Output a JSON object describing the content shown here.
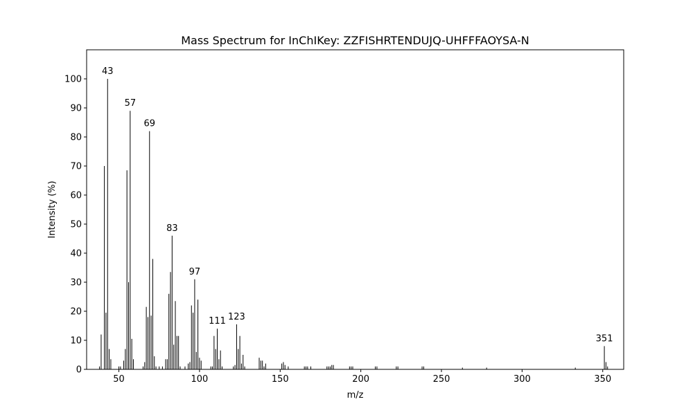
{
  "chart_data": {
    "type": "bar",
    "title": "Mass Spectrum for InChIKey: ZZFISHRTENDUJQ-UHFFFAOYSA-N",
    "xlabel": "m/z",
    "ylabel": "Intensity (%)",
    "xlim": [
      30,
      363
    ],
    "ylim": [
      0,
      110
    ],
    "xticks": [
      50,
      100,
      150,
      200,
      250,
      300,
      350
    ],
    "yticks": [
      0,
      10,
      20,
      30,
      40,
      50,
      60,
      70,
      80,
      90,
      100
    ],
    "grid": false,
    "bar_color": "#000000",
    "peaks": [
      {
        "mz": 38,
        "intensity": 1.0
      },
      {
        "mz": 39,
        "intensity": 12.0
      },
      {
        "mz": 41,
        "intensity": 70.0
      },
      {
        "mz": 42,
        "intensity": 19.5
      },
      {
        "mz": 43,
        "intensity": 100.0
      },
      {
        "mz": 44,
        "intensity": 7.0
      },
      {
        "mz": 45,
        "intensity": 3.5
      },
      {
        "mz": 50,
        "intensity": 1.0
      },
      {
        "mz": 51,
        "intensity": 1.0
      },
      {
        "mz": 53,
        "intensity": 3.0
      },
      {
        "mz": 54,
        "intensity": 7.0
      },
      {
        "mz": 55,
        "intensity": 68.5
      },
      {
        "mz": 56,
        "intensity": 30.0
      },
      {
        "mz": 57,
        "intensity": 89.0
      },
      {
        "mz": 58,
        "intensity": 10.5
      },
      {
        "mz": 59,
        "intensity": 3.5
      },
      {
        "mz": 65,
        "intensity": 1.0
      },
      {
        "mz": 66,
        "intensity": 2.5
      },
      {
        "mz": 67,
        "intensity": 21.5
      },
      {
        "mz": 68,
        "intensity": 18.0
      },
      {
        "mz": 69,
        "intensity": 82.0
      },
      {
        "mz": 70,
        "intensity": 18.5
      },
      {
        "mz": 71,
        "intensity": 38.0
      },
      {
        "mz": 72,
        "intensity": 4.5
      },
      {
        "mz": 73,
        "intensity": 1.0
      },
      {
        "mz": 75,
        "intensity": 1.0
      },
      {
        "mz": 77,
        "intensity": 1.0
      },
      {
        "mz": 79,
        "intensity": 3.5
      },
      {
        "mz": 80,
        "intensity": 3.5
      },
      {
        "mz": 81,
        "intensity": 26.0
      },
      {
        "mz": 82,
        "intensity": 33.5
      },
      {
        "mz": 83,
        "intensity": 46.0
      },
      {
        "mz": 84,
        "intensity": 8.5
      },
      {
        "mz": 85,
        "intensity": 23.5
      },
      {
        "mz": 86,
        "intensity": 11.5
      },
      {
        "mz": 87,
        "intensity": 11.5
      },
      {
        "mz": 88,
        "intensity": 1.0
      },
      {
        "mz": 91,
        "intensity": 1.0
      },
      {
        "mz": 93,
        "intensity": 2.0
      },
      {
        "mz": 94,
        "intensity": 2.5
      },
      {
        "mz": 95,
        "intensity": 22.0
      },
      {
        "mz": 96,
        "intensity": 19.5
      },
      {
        "mz": 97,
        "intensity": 31.0
      },
      {
        "mz": 98,
        "intensity": 6.0
      },
      {
        "mz": 99,
        "intensity": 24.0
      },
      {
        "mz": 100,
        "intensity": 4.0
      },
      {
        "mz": 101,
        "intensity": 3.0
      },
      {
        "mz": 107,
        "intensity": 1.0
      },
      {
        "mz": 108,
        "intensity": 1.0
      },
      {
        "mz": 109,
        "intensity": 11.5
      },
      {
        "mz": 110,
        "intensity": 7.0
      },
      {
        "mz": 111,
        "intensity": 14.0
      },
      {
        "mz": 112,
        "intensity": 3.5
      },
      {
        "mz": 113,
        "intensity": 6.5
      },
      {
        "mz": 114,
        "intensity": 1.0
      },
      {
        "mz": 121,
        "intensity": 1.0
      },
      {
        "mz": 122,
        "intensity": 1.5
      },
      {
        "mz": 123,
        "intensity": 15.5
      },
      {
        "mz": 124,
        "intensity": 7.0
      },
      {
        "mz": 125,
        "intensity": 11.5
      },
      {
        "mz": 126,
        "intensity": 2.0
      },
      {
        "mz": 127,
        "intensity": 5.0
      },
      {
        "mz": 128,
        "intensity": 1.0
      },
      {
        "mz": 137,
        "intensity": 4.0
      },
      {
        "mz": 138,
        "intensity": 3.0
      },
      {
        "mz": 139,
        "intensity": 3.0
      },
      {
        "mz": 140,
        "intensity": 1.0
      },
      {
        "mz": 141,
        "intensity": 2.0
      },
      {
        "mz": 151,
        "intensity": 2.0
      },
      {
        "mz": 152,
        "intensity": 2.5
      },
      {
        "mz": 153,
        "intensity": 1.5
      },
      {
        "mz": 155,
        "intensity": 1.0
      },
      {
        "mz": 165,
        "intensity": 1.0
      },
      {
        "mz": 166,
        "intensity": 1.0
      },
      {
        "mz": 167,
        "intensity": 1.0
      },
      {
        "mz": 169,
        "intensity": 1.0
      },
      {
        "mz": 179,
        "intensity": 1.0
      },
      {
        "mz": 180,
        "intensity": 1.0
      },
      {
        "mz": 181,
        "intensity": 1.0
      },
      {
        "mz": 182,
        "intensity": 1.5
      },
      {
        "mz": 183,
        "intensity": 1.5
      },
      {
        "mz": 193,
        "intensity": 1.0
      },
      {
        "mz": 194,
        "intensity": 1.0
      },
      {
        "mz": 195,
        "intensity": 1.0
      },
      {
        "mz": 209,
        "intensity": 1.0
      },
      {
        "mz": 210,
        "intensity": 1.0
      },
      {
        "mz": 222,
        "intensity": 1.0
      },
      {
        "mz": 223,
        "intensity": 1.0
      },
      {
        "mz": 238,
        "intensity": 1.0
      },
      {
        "mz": 239,
        "intensity": 1.0
      },
      {
        "mz": 263,
        "intensity": 0.6
      },
      {
        "mz": 278,
        "intensity": 0.6
      },
      {
        "mz": 333,
        "intensity": 0.6
      },
      {
        "mz": 351,
        "intensity": 8.0
      },
      {
        "mz": 352,
        "intensity": 2.5
      },
      {
        "mz": 353,
        "intensity": 1.0
      }
    ],
    "annotations": [
      {
        "text": "43",
        "mz": 43,
        "intensity": 100.0
      },
      {
        "text": "57",
        "mz": 57,
        "intensity": 89.0
      },
      {
        "text": "69",
        "mz": 69,
        "intensity": 82.0
      },
      {
        "text": "83",
        "mz": 83,
        "intensity": 46.0
      },
      {
        "text": "97",
        "mz": 97,
        "intensity": 31.0
      },
      {
        "text": "111",
        "mz": 111,
        "intensity": 14.0
      },
      {
        "text": "123",
        "mz": 123,
        "intensity": 15.5
      },
      {
        "text": "351",
        "mz": 351,
        "intensity": 8.0
      }
    ]
  }
}
